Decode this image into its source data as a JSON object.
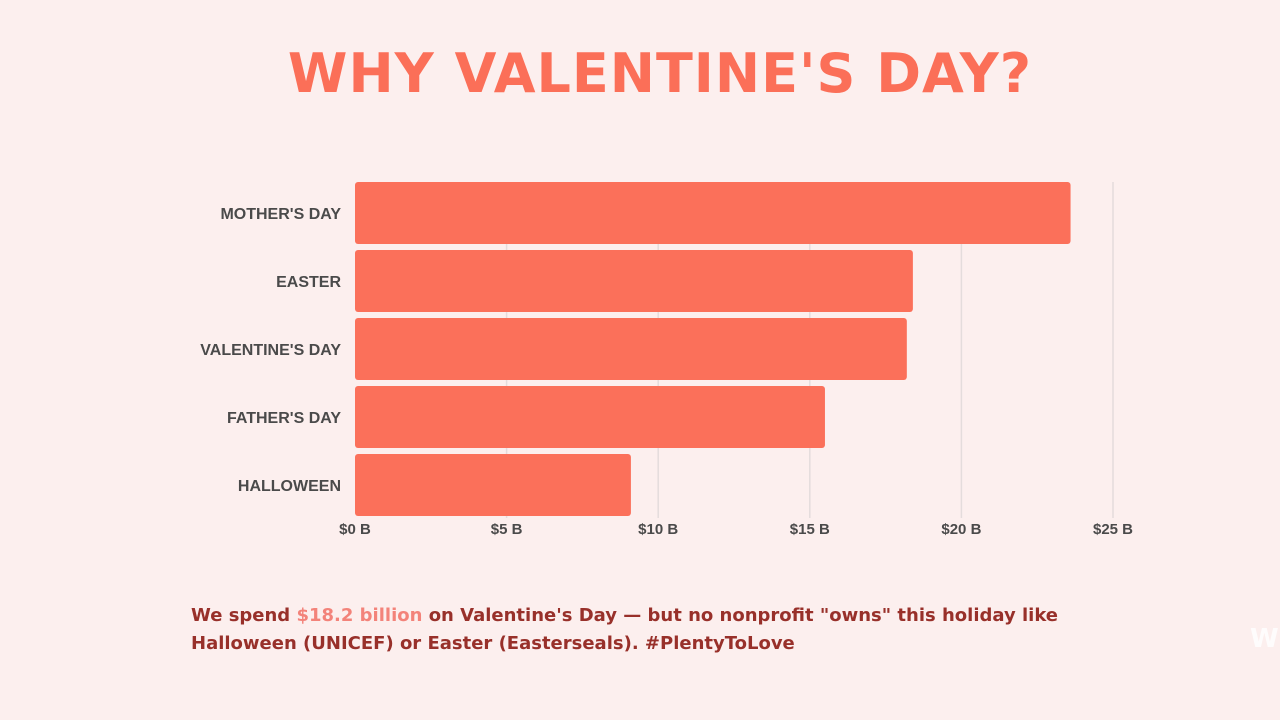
{
  "title": "WHY VALENTINE'S DAY?",
  "chart_data": {
    "type": "bar",
    "orientation": "horizontal",
    "title": "WHY VALENTINE'S DAY?",
    "categories": [
      "MOTHER'S DAY",
      "EASTER",
      "VALENTINE'S DAY",
      "FATHER'S DAY",
      "HALLOWEEN"
    ],
    "values": [
      23.6,
      18.4,
      18.2,
      15.5,
      9.1
    ],
    "xlim": [
      0,
      25
    ],
    "ticks": [
      0,
      5,
      10,
      15,
      20,
      25
    ],
    "tick_labels": [
      "$0 B",
      "$5 B",
      "$10 B",
      "$15 B",
      "$20 B",
      "$25 B"
    ],
    "grid": true,
    "bar_color": "#fb705a"
  },
  "caption": {
    "part1": "We spend ",
    "highlight": "$18.2 billion",
    "part2": " on Valentine's Day — but no nonprofit \"owns\" this holiday like Halloween (UNICEF) or Easter (Easterseals).  #PlentyToLove"
  },
  "colors": {
    "background": "#fcefee",
    "accent": "#fb6f58",
    "caption_text": "#98302a",
    "caption_highlight": "#f3837a",
    "grid": "#e4dcdc",
    "axis_text": "#4a4a4a"
  }
}
